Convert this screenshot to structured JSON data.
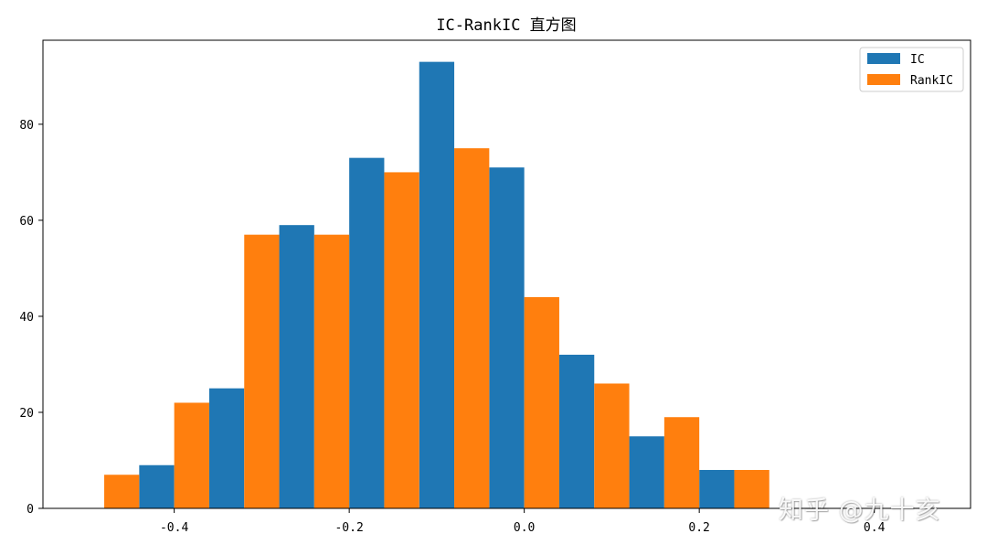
{
  "chart_data": {
    "type": "bar",
    "title": "IC-RankIC 直方图",
    "xlabel": "",
    "ylabel": "",
    "xlim": [
      -0.55,
      0.51
    ],
    "ylim": [
      0,
      97.5
    ],
    "x_ticks": [
      -0.4,
      -0.2,
      0.0,
      0.2,
      0.4
    ],
    "x_tick_labels": [
      "-0.4",
      "-0.2",
      "0.0",
      "0.2",
      "0.4"
    ],
    "y_ticks": [
      0,
      20,
      40,
      60,
      80
    ],
    "y_tick_labels": [
      "0",
      "20",
      "40",
      "60",
      "80"
    ],
    "grid": false,
    "legend_position": "top-right",
    "bin_width": 0.08,
    "series": [
      {
        "name": "IC",
        "color": "#1f77b4",
        "bin_starts": [
          -0.52,
          -0.44,
          -0.36,
          -0.28,
          -0.2,
          -0.12,
          -0.04,
          0.04,
          0.12,
          0.2,
          0.28,
          0.36,
          0.44
        ],
        "values": [
          0,
          9,
          25,
          59,
          73,
          93,
          71,
          32,
          15,
          8,
          0,
          0,
          0
        ]
      },
      {
        "name": "RankIC",
        "color": "#ff7f0e",
        "bin_starts": [
          -0.52,
          -0.44,
          -0.36,
          -0.28,
          -0.2,
          -0.12,
          -0.04,
          0.04,
          0.12,
          0.2,
          0.28,
          0.36,
          0.44
        ],
        "values": [
          7,
          22,
          57,
          57,
          70,
          75,
          44,
          26,
          19,
          8,
          0,
          0,
          0
        ]
      }
    ]
  },
  "watermark": {
    "text": "知乎 @九十亥"
  }
}
